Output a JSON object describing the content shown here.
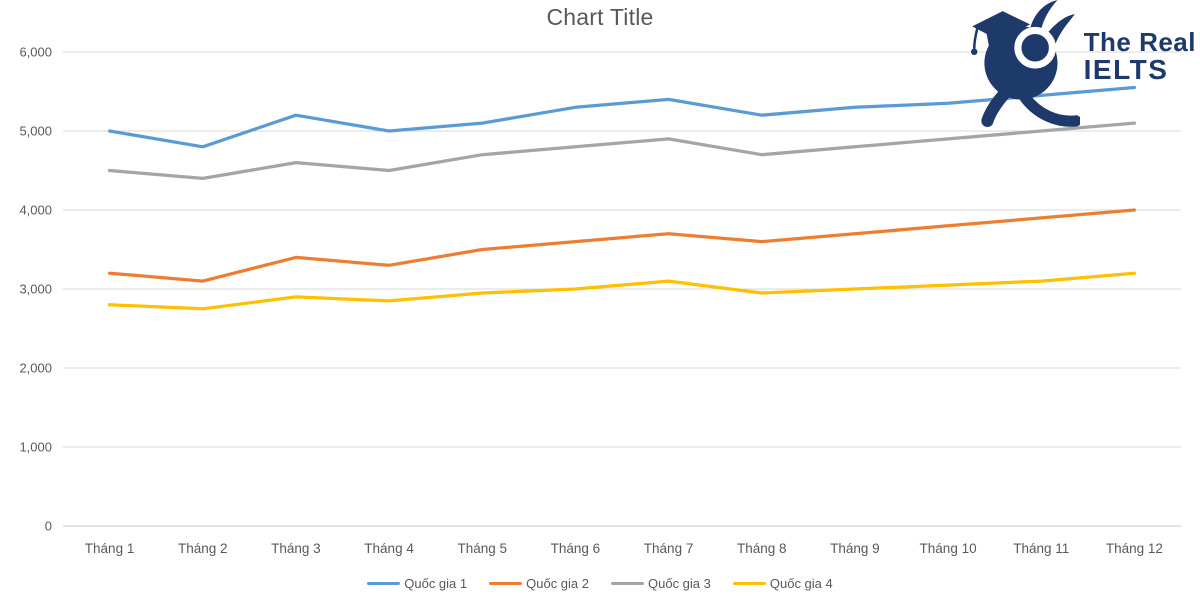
{
  "chart_data": {
    "type": "line",
    "title": "Chart Title",
    "xlabel": "",
    "ylabel": "",
    "ylim": [
      0,
      6000
    ],
    "ytick_step": 1000,
    "ytick_labels": [
      "0",
      "1,000",
      "2,000",
      "3,000",
      "4,000",
      "5,000",
      "6,000"
    ],
    "grid": true,
    "legend_position": "bottom",
    "categories": [
      "Tháng 1",
      "Tháng 2",
      "Tháng 3",
      "Tháng 4",
      "Tháng 5",
      "Tháng 6",
      "Tháng 7",
      "Tháng 8",
      "Tháng 9",
      "Tháng 10",
      "Tháng 11",
      "Tháng 12"
    ],
    "series": [
      {
        "name": "Quốc gia 1",
        "color": "#5B9BD5",
        "values": [
          5000,
          4800,
          5200,
          5000,
          5100,
          5300,
          5400,
          5200,
          5300,
          5350,
          5450,
          5550
        ]
      },
      {
        "name": "Quốc gia 2",
        "color": "#ED7D31",
        "values": [
          3200,
          3100,
          3400,
          3300,
          3500,
          3600,
          3700,
          3600,
          3700,
          3800,
          3900,
          4000
        ]
      },
      {
        "name": "Quốc gia 3",
        "color": "#A5A5A5",
        "values": [
          4500,
          4400,
          4600,
          4500,
          4700,
          4800,
          4900,
          4700,
          4800,
          4900,
          5000,
          5100
        ]
      },
      {
        "name": "Quốc gia 4",
        "color": "#FFC000",
        "values": [
          2800,
          2750,
          2900,
          2850,
          2950,
          3000,
          3100,
          2950,
          3000,
          3050,
          3100,
          3200
        ]
      }
    ],
    "colors": {
      "axis_text": "#595959",
      "gridline": "#D9D9D9",
      "axis_line": "#C6C6C6"
    }
  },
  "logo": {
    "line1": "The Real",
    "line2": "IELTS",
    "color": "#1E3A6B"
  }
}
